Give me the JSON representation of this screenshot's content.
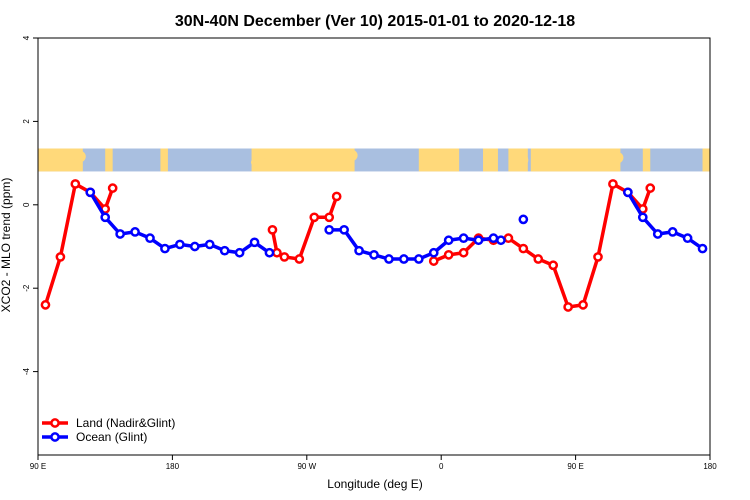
{
  "chart_data": {
    "type": "line",
    "title": "30N-40N December (Ver 10)   2015-01-01 to 2020-12-18",
    "xlabel": "Longitude (deg E)",
    "ylabel": "XCO2 - MLO trend (ppm)",
    "xlim": [
      90,
      540
    ],
    "ylim": [
      -6,
      4
    ],
    "x_ticks": [
      {
        "value": 90,
        "label": "90 E"
      },
      {
        "value": 180,
        "label": "180"
      },
      {
        "value": 270,
        "label": "90 W"
      },
      {
        "value": 360,
        "label": "0"
      },
      {
        "value": 450,
        "label": "90 E"
      },
      {
        "value": 540,
        "label": "180"
      }
    ],
    "y_ticks": [
      {
        "value": 4,
        "label": "4"
      },
      {
        "value": 2,
        "label": "2"
      },
      {
        "value": 0,
        "label": "0"
      },
      {
        "value": -2,
        "label": "-2"
      },
      {
        "value": -4,
        "label": "-4"
      }
    ],
    "land_map_band": {
      "y_from": 0.8,
      "y_to": 1.35,
      "land_color": "#FFD97A",
      "ocean_color": "#A9BFE0"
    },
    "legend": {
      "position": "bottom-left"
    },
    "series": [
      {
        "name": "Land (Nadir&Glint)",
        "color": "#FF0000",
        "segments": [
          [
            [
              95,
              -2.4
            ],
            [
              105,
              -1.25
            ],
            [
              115,
              0.5
            ],
            [
              125,
              0.3
            ],
            [
              135,
              -0.1
            ],
            [
              140,
              0.4
            ]
          ],
          [
            [
              247,
              -0.6
            ],
            [
              250,
              -1.15
            ],
            [
              255,
              -1.25
            ],
            [
              265,
              -1.3
            ],
            [
              275,
              -0.3
            ],
            [
              285,
              -0.3
            ],
            [
              290,
              0.2
            ]
          ],
          [
            [
              355,
              -1.35
            ],
            [
              365,
              -1.2
            ],
            [
              375,
              -1.15
            ],
            [
              385,
              -0.8
            ],
            [
              395,
              -0.85
            ],
            [
              405,
              -0.8
            ],
            [
              415,
              -1.05
            ],
            [
              425,
              -1.3
            ],
            [
              435,
              -1.45
            ],
            [
              445,
              -2.45
            ],
            [
              455,
              -2.4
            ],
            [
              465,
              -1.25
            ],
            [
              475,
              0.5
            ],
            [
              485,
              0.3
            ],
            [
              495,
              -0.1
            ],
            [
              500,
              0.4
            ]
          ]
        ]
      },
      {
        "name": "Ocean (Glint)",
        "color": "#0000FF",
        "segments": [
          [
            [
              125,
              0.3
            ],
            [
              135,
              -0.3
            ],
            [
              145,
              -0.7
            ],
            [
              155,
              -0.65
            ],
            [
              165,
              -0.8
            ],
            [
              175,
              -1.05
            ],
            [
              185,
              -0.95
            ],
            [
              195,
              -1.0
            ],
            [
              205,
              -0.95
            ],
            [
              215,
              -1.1
            ],
            [
              225,
              -1.15
            ],
            [
              235,
              -0.9
            ],
            [
              245,
              -1.15
            ]
          ],
          [
            [
              285,
              -0.6
            ],
            [
              295,
              -0.6
            ],
            [
              305,
              -1.1
            ],
            [
              315,
              -1.2
            ],
            [
              325,
              -1.3
            ],
            [
              335,
              -1.3
            ],
            [
              345,
              -1.3
            ],
            [
              355,
              -1.15
            ],
            [
              365,
              -0.85
            ],
            [
              375,
              -0.8
            ],
            [
              385,
              -0.85
            ],
            [
              395,
              -0.8
            ],
            [
              400,
              -0.85
            ]
          ],
          [
            [
              415,
              -0.35
            ]
          ],
          [
            [
              485,
              0.3
            ],
            [
              495,
              -0.3
            ],
            [
              505,
              -0.7
            ],
            [
              515,
              -0.65
            ],
            [
              525,
              -0.8
            ],
            [
              535,
              -1.05
            ]
          ]
        ]
      }
    ]
  }
}
